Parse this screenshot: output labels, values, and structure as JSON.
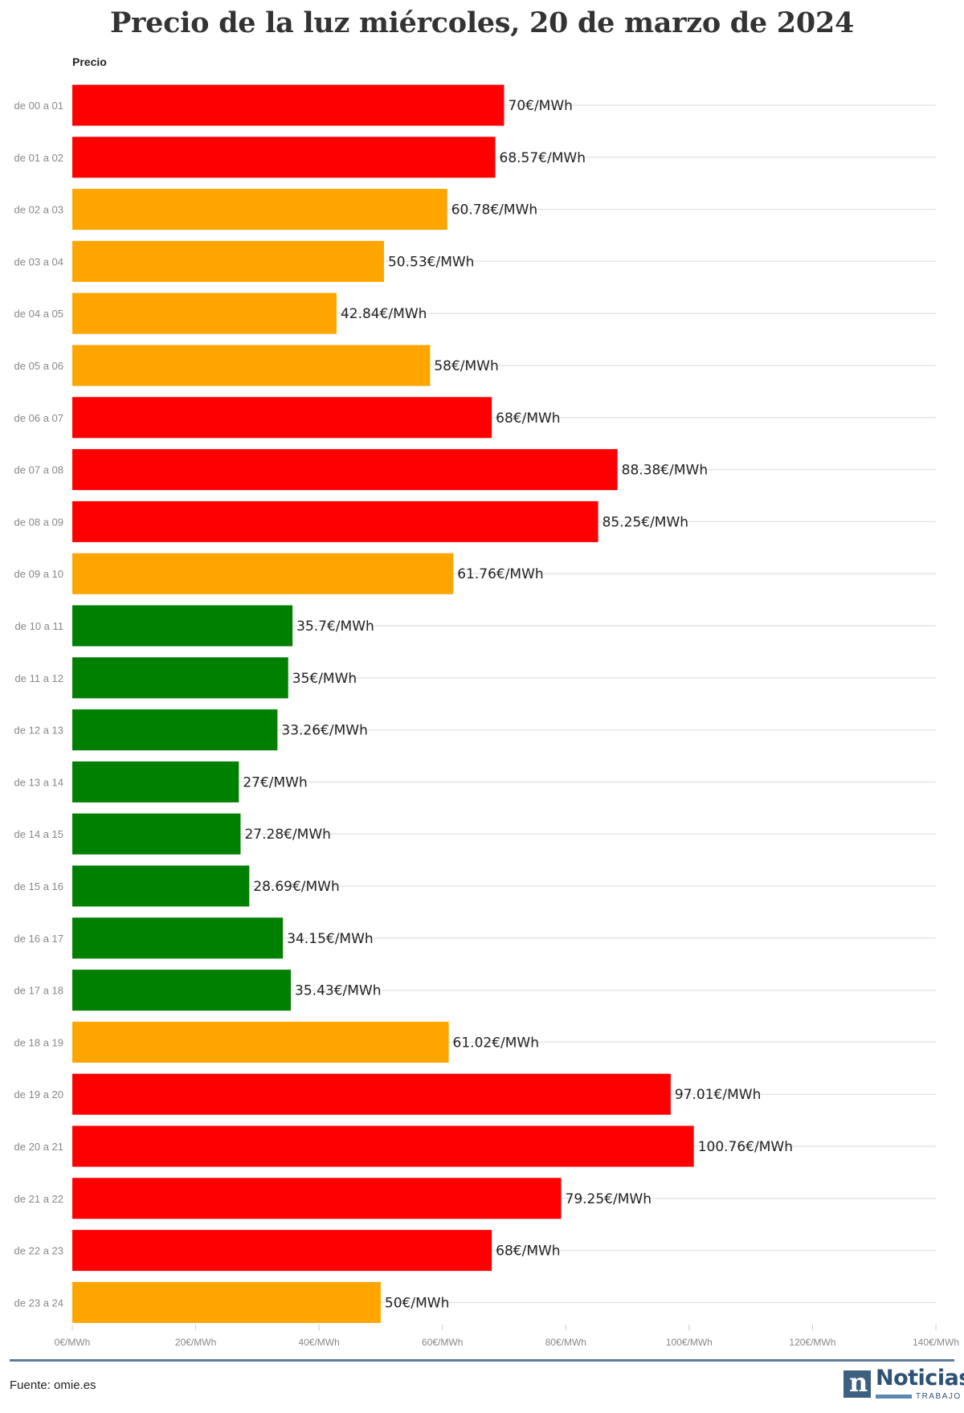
{
  "title": "Precio de la luz miércoles, 20 de marzo de 2024",
  "legend_label": "Precio",
  "source": "Fuente: omie.es",
  "logo": {
    "word": "Noticias",
    "sub": "TRABAJO",
    "mark": "n"
  },
  "colors": {
    "red": "#ff0000",
    "orange": "#ffa500",
    "green": "#008000",
    "grid": "#e6e6e6",
    "tick": "#888888",
    "label": "#222222",
    "rule": "#5b7d99"
  },
  "chart_data": {
    "type": "bar",
    "orientation": "horizontal",
    "title": "Precio de la luz miércoles, 20 de marzo de 2024",
    "xlabel": "",
    "ylabel": "",
    "xlim": [
      0,
      140
    ],
    "x_ticks": [
      "0€/MWh",
      "20€/MWh",
      "40€/MWh",
      "60€/MWh",
      "80€/MWh",
      "100€/MWh",
      "120€/MWh",
      "140€/MWh"
    ],
    "grid": true,
    "categories": [
      "de 00 a 01",
      "de 01 a 02",
      "de 02 a 03",
      "de 03 a 04",
      "de 04 a 05",
      "de 05 a 06",
      "de 06 a 07",
      "de 07 a 08",
      "de 08 a 09",
      "de 09 a 10",
      "de 10 a 11",
      "de 11 a 12",
      "de 12 a 13",
      "de 13 a 14",
      "de 14 a 15",
      "de 15 a 16",
      "de 16 a 17",
      "de 17 a 18",
      "de 18 a 19",
      "de 19 a 20",
      "de 20 a 21",
      "de 21 a 22",
      "de 22 a 23",
      "de 23 a 24"
    ],
    "values": [
      70,
      68.57,
      60.78,
      50.53,
      42.84,
      58,
      68,
      88.38,
      85.25,
      61.76,
      35.7,
      35,
      33.26,
      27,
      27.28,
      28.69,
      34.15,
      35.43,
      61.02,
      97.01,
      100.76,
      79.25,
      68,
      50
    ],
    "value_labels": [
      "70€/MWh",
      "68.57€/MWh",
      "60.78€/MWh",
      "50.53€/MWh",
      "42.84€/MWh",
      "58€/MWh",
      "68€/MWh",
      "88.38€/MWh",
      "85.25€/MWh",
      "61.76€/MWh",
      "35.7€/MWh",
      "35€/MWh",
      "33.26€/MWh",
      "27€/MWh",
      "27.28€/MWh",
      "28.69€/MWh",
      "34.15€/MWh",
      "35.43€/MWh",
      "61.02€/MWh",
      "97.01€/MWh",
      "100.76€/MWh",
      "79.25€/MWh",
      "68€/MWh",
      "50€/MWh"
    ],
    "bar_colors": [
      "red",
      "red",
      "orange",
      "orange",
      "orange",
      "orange",
      "red",
      "red",
      "red",
      "orange",
      "green",
      "green",
      "green",
      "green",
      "green",
      "green",
      "green",
      "green",
      "orange",
      "red",
      "red",
      "red",
      "red",
      "orange"
    ]
  }
}
